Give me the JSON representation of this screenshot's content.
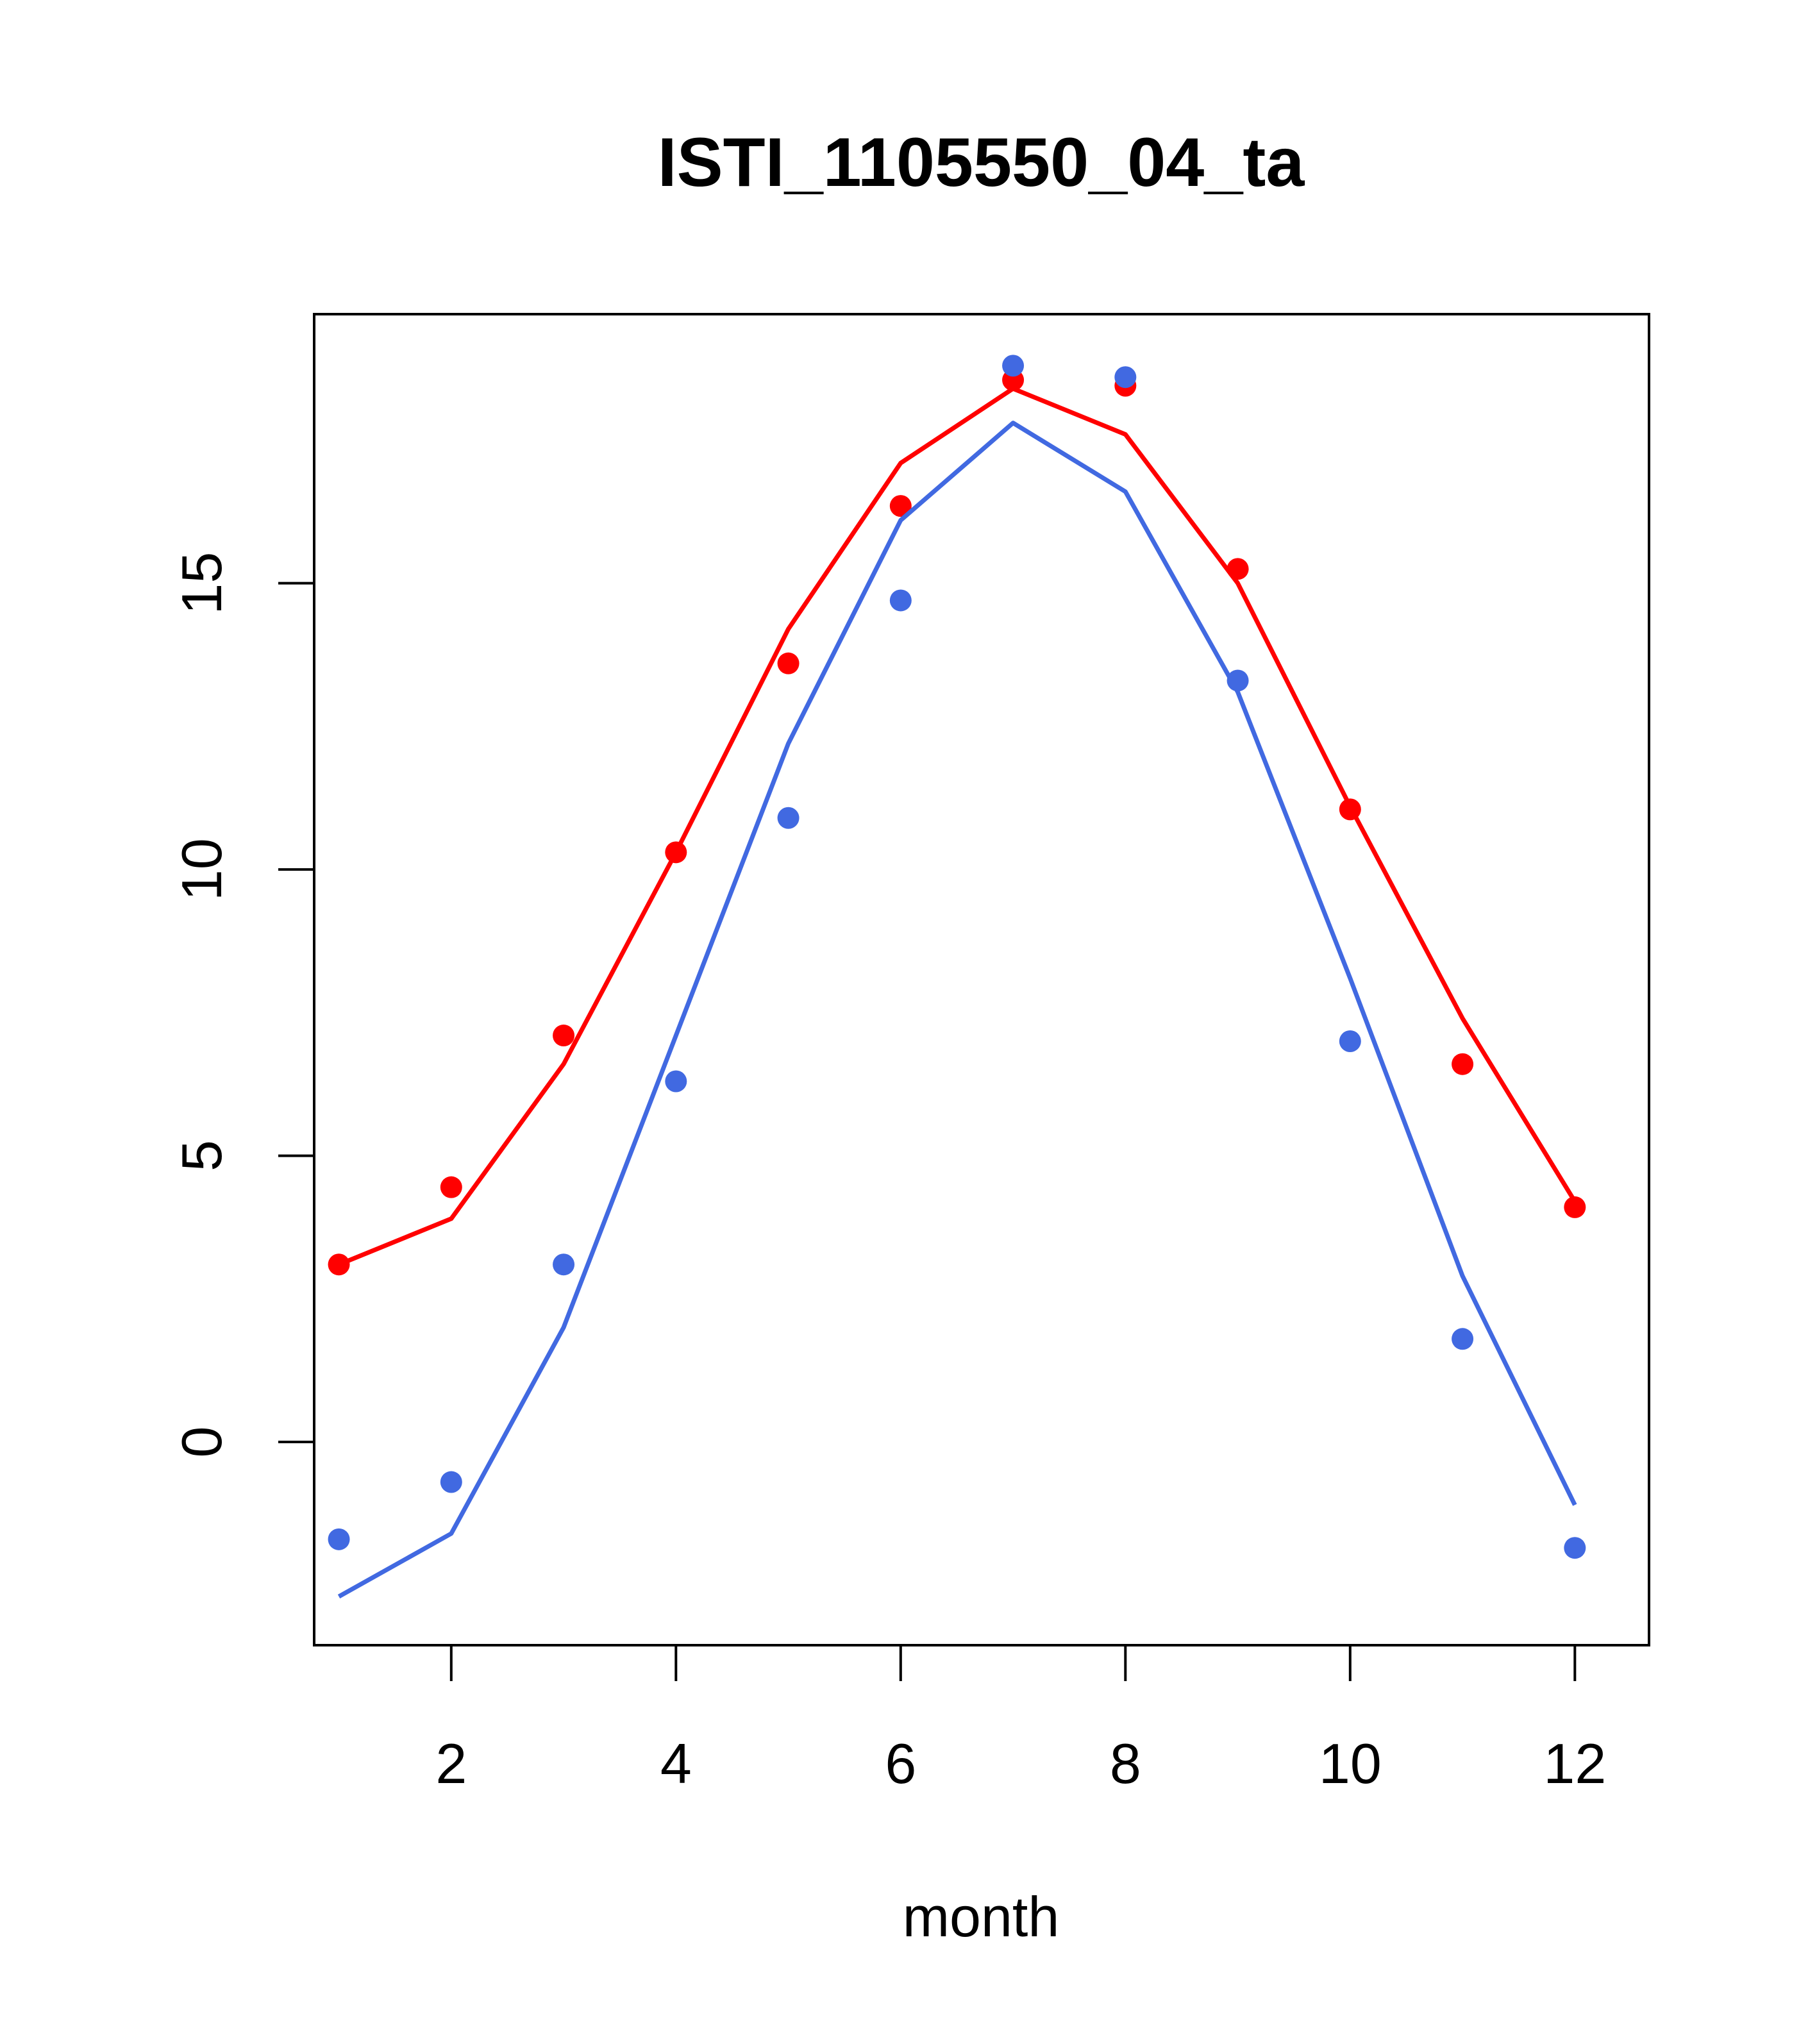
{
  "chart_data": {
    "type": "line",
    "title": "ISTI_1105550_04_ta",
    "xlabel": "month",
    "ylabel": "",
    "xlim": [
      0.78,
      12.66
    ],
    "ylim": [
      -3.55,
      19.7
    ],
    "x_ticks": [
      2,
      4,
      6,
      8,
      10,
      12
    ],
    "y_ticks": [
      0,
      5,
      10,
      15
    ],
    "grid": false,
    "legend": "none",
    "x": [
      1,
      2,
      3,
      4,
      5,
      6,
      7,
      8,
      9,
      10,
      11,
      12
    ],
    "series": [
      {
        "color": "#ff0000",
        "line": [
          3.1,
          3.9,
          6.6,
          10.3,
          14.2,
          17.1,
          18.4,
          17.6,
          15.0,
          11.1,
          7.4,
          4.2
        ],
        "points": [
          3.1,
          4.45,
          7.1,
          10.3,
          13.6,
          16.35,
          18.55,
          18.45,
          15.25,
          11.05,
          6.6,
          4.1
        ]
      },
      {
        "color": "#4169e1",
        "line": [
          -2.7,
          -1.6,
          2.0,
          7.1,
          12.2,
          16.1,
          17.8,
          16.6,
          13.1,
          8.1,
          2.9,
          -1.1
        ],
        "points": [
          -1.7,
          -0.7,
          3.1,
          6.3,
          10.9,
          14.7,
          18.8,
          18.6,
          13.3,
          7.0,
          1.8,
          -1.85
        ]
      }
    ]
  }
}
